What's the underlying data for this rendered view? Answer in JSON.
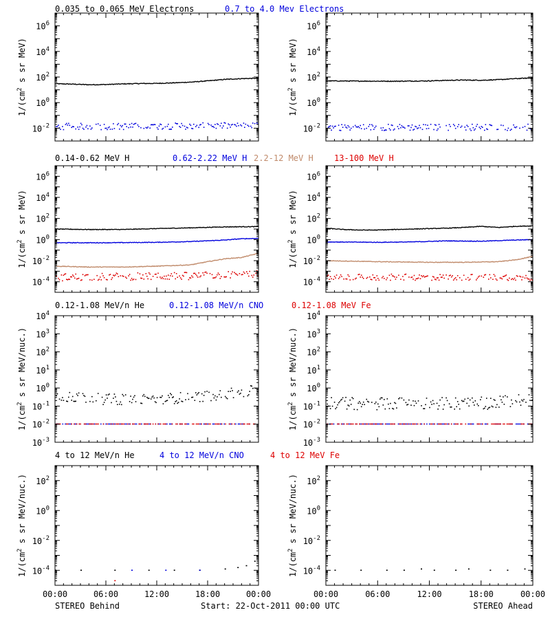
{
  "time_axis": {
    "ticks": [
      "00:00",
      "06:00",
      "12:00",
      "18:00",
      "00:00"
    ],
    "start": "Start: 22-Oct-2011 00:00 UTC",
    "left_label": "STEREO Behind",
    "right_label": "STEREO Ahead"
  },
  "chart_data": [
    {
      "type": "scatter",
      "row": 1,
      "legend": [
        {
          "text": "0.035 to 0.065 MeV Electrons",
          "color": "#000000"
        },
        {
          "text": "0.7 to 4.0 Mev Electrons",
          "color": "#0000dd"
        }
      ],
      "ylabel_pre": "1/(cm",
      "ylabel_sup": "2",
      "ylabel_post": " s sr MeV)",
      "yscale": "log",
      "ylim_exp": [
        -3,
        7
      ],
      "yticks": [
        {
          "b": "10",
          "e": "-2"
        },
        {
          "b": "10",
          "e": "0"
        },
        {
          "b": "10",
          "e": "2"
        },
        {
          "b": "10",
          "e": "4"
        },
        {
          "b": "10",
          "e": "6"
        }
      ],
      "xlim_hours": [
        0,
        24
      ],
      "panels": {
        "behind": [
          {
            "name": "0.035 to 0.065 MeV Electrons",
            "color": "#000000",
            "style": "line",
            "points": [
              [
                0,
                30
              ],
              [
                2,
                28
              ],
              [
                4,
                25
              ],
              [
                6,
                26
              ],
              [
                8,
                29
              ],
              [
                10,
                31
              ],
              [
                12,
                32
              ],
              [
                14,
                35
              ],
              [
                16,
                40
              ],
              [
                18,
                50
              ],
              [
                20,
                65
              ],
              [
                22,
                75
              ],
              [
                24,
                80
              ]
            ]
          },
          {
            "name": "0.7 to 4.0 Mev Electrons",
            "color": "#0000dd",
            "style": "dots",
            "points": [
              [
                0,
                0.015
              ],
              [
                4,
                0.015
              ],
              [
                8,
                0.015
              ],
              [
                12,
                0.016
              ],
              [
                16,
                0.016
              ],
              [
                20,
                0.017
              ],
              [
                24,
                0.017
              ]
            ],
            "scatter": 0.25
          }
        ],
        "ahead": [
          {
            "name": "0.035 to 0.065 MeV Electrons",
            "color": "#000000",
            "style": "line",
            "points": [
              [
                0,
                50
              ],
              [
                4,
                48
              ],
              [
                8,
                47
              ],
              [
                12,
                50
              ],
              [
                14,
                55
              ],
              [
                16,
                58
              ],
              [
                18,
                56
              ],
              [
                20,
                62
              ],
              [
                22,
                75
              ],
              [
                24,
                85
              ]
            ]
          },
          {
            "name": "0.7 to 4.0 Mev Electrons",
            "color": "#0000dd",
            "style": "dots",
            "points": [
              [
                0,
                0.013
              ],
              [
                6,
                0.013
              ],
              [
                12,
                0.013
              ],
              [
                18,
                0.013
              ],
              [
                24,
                0.013
              ]
            ],
            "scatter": 0.25
          }
        ]
      }
    },
    {
      "type": "scatter",
      "row": 2,
      "legend": [
        {
          "text": "0.14-0.62 MeV H",
          "color": "#000000"
        },
        {
          "text": "0.62-2.22 MeV H",
          "color": "#0000dd"
        },
        {
          "text": "2.2-12 MeV H",
          "color": "#c08a6a"
        },
        {
          "text": "13-100 MeV H",
          "color": "#dd0000"
        }
      ],
      "ylabel_pre": "1/(cm",
      "ylabel_sup": "2",
      "ylabel_post": " s sr MeV)",
      "yscale": "log",
      "ylim_exp": [
        -5,
        7
      ],
      "yticks": [
        {
          "b": "10",
          "e": "-4"
        },
        {
          "b": "10",
          "e": "-2"
        },
        {
          "b": "10",
          "e": "0"
        },
        {
          "b": "10",
          "e": "2"
        },
        {
          "b": "10",
          "e": "4"
        },
        {
          "b": "10",
          "e": "6"
        }
      ],
      "xlim_hours": [
        0,
        24
      ],
      "panels": {
        "behind": [
          {
            "name": "0.14-0.62 MeV H",
            "color": "#000000",
            "style": "line",
            "points": [
              [
                0,
                10
              ],
              [
                4,
                9
              ],
              [
                8,
                9
              ],
              [
                12,
                11
              ],
              [
                16,
                13
              ],
              [
                20,
                16
              ],
              [
                24,
                17
              ]
            ]
          },
          {
            "name": "0.62-2.22 MeV H",
            "color": "#0000dd",
            "style": "line",
            "points": [
              [
                0,
                0.5
              ],
              [
                6,
                0.5
              ],
              [
                12,
                0.55
              ],
              [
                16,
                0.65
              ],
              [
                20,
                0.9
              ],
              [
                22,
                1.2
              ],
              [
                24,
                1.3
              ]
            ]
          },
          {
            "name": "2.2-12 MeV H",
            "color": "#c08a6a",
            "style": "line",
            "points": [
              [
                0,
                0.003
              ],
              [
                4,
                0.0025
              ],
              [
                8,
                0.0025
              ],
              [
                12,
                0.003
              ],
              [
                16,
                0.004
              ],
              [
                18,
                0.008
              ],
              [
                20,
                0.015
              ],
              [
                22,
                0.02
              ],
              [
                24,
                0.05
              ]
            ]
          },
          {
            "name": "13-100 MeV H",
            "color": "#dd0000",
            "style": "dots",
            "points": [
              [
                0,
                0.0003
              ],
              [
                8,
                0.00035
              ],
              [
                16,
                0.0004
              ],
              [
                24,
                0.0006
              ]
            ],
            "scatter": 0.35
          }
        ],
        "ahead": [
          {
            "name": "0.14-0.62 MeV H",
            "color": "#000000",
            "style": "line",
            "points": [
              [
                0,
                12
              ],
              [
                2,
                9
              ],
              [
                4,
                8
              ],
              [
                6,
                8
              ],
              [
                8,
                9
              ],
              [
                10,
                10
              ],
              [
                14,
                12
              ],
              [
                16,
                14
              ],
              [
                18,
                18
              ],
              [
                20,
                14
              ],
              [
                22,
                18
              ],
              [
                24,
                20
              ]
            ]
          },
          {
            "name": "0.62-2.22 MeV H",
            "color": "#0000dd",
            "style": "line",
            "points": [
              [
                0,
                0.6
              ],
              [
                6,
                0.55
              ],
              [
                10,
                0.6
              ],
              [
                14,
                0.75
              ],
              [
                18,
                0.7
              ],
              [
                22,
                0.9
              ],
              [
                24,
                1.0
              ]
            ]
          },
          {
            "name": "2.2-12 MeV H",
            "color": "#c08a6a",
            "style": "line",
            "points": [
              [
                0,
                0.01
              ],
              [
                6,
                0.008
              ],
              [
                12,
                0.007
              ],
              [
                16,
                0.007
              ],
              [
                20,
                0.008
              ],
              [
                22,
                0.012
              ],
              [
                24,
                0.025
              ]
            ]
          },
          {
            "name": "13-100 MeV H",
            "color": "#dd0000",
            "style": "dots",
            "points": [
              [
                0,
                0.0003
              ],
              [
                8,
                0.0003
              ],
              [
                16,
                0.0003
              ],
              [
                24,
                0.0003
              ]
            ],
            "scatter": 0.3
          }
        ]
      }
    },
    {
      "type": "scatter",
      "row": 3,
      "legend": [
        {
          "text": "0.12-1.08 MeV/n He",
          "color": "#000000"
        },
        {
          "text": "0.12-1.08 MeV/n CNO",
          "color": "#0000dd"
        },
        {
          "text": "0.12-1.08 MeV Fe",
          "color": "#dd0000"
        }
      ],
      "ylabel_pre": "1/(cm",
      "ylabel_sup": "2",
      "ylabel_post": " s sr MeV/nuc.)",
      "yscale": "log",
      "ylim_exp": [
        -3,
        4
      ],
      "yticks": [
        {
          "b": "10",
          "e": "-3"
        },
        {
          "b": "10",
          "e": "-2"
        },
        {
          "b": "10",
          "e": "-1"
        },
        {
          "b": "10",
          "e": "0"
        },
        {
          "b": "10",
          "e": "1"
        },
        {
          "b": "10",
          "e": "2"
        },
        {
          "b": "10",
          "e": "3"
        },
        {
          "b": "10",
          "e": "4"
        }
      ],
      "xlim_hours": [
        0,
        24
      ],
      "panels": {
        "behind": [
          {
            "name": "0.12-1.08 MeV/n He",
            "color": "#000000",
            "style": "dots",
            "points": [
              [
                0,
                0.4
              ],
              [
                6,
                0.25
              ],
              [
                12,
                0.25
              ],
              [
                18,
                0.4
              ],
              [
                24,
                0.8
              ]
            ],
            "scatter": 0.3
          },
          {
            "name": "0.12-1.08 MeV/n CNO",
            "color": "#0000dd",
            "style": "floor",
            "level": 0.01,
            "points": [
              [
                0,
                0.01
              ],
              [
                24,
                0.01
              ]
            ]
          },
          {
            "name": "0.12-1.08 MeV Fe",
            "color": "#dd0000",
            "style": "floor",
            "level": 0.01,
            "points": [
              [
                0,
                0.01
              ],
              [
                24,
                0.01
              ]
            ]
          }
        ],
        "ahead": [
          {
            "name": "0.12-1.08 MeV/n He",
            "color": "#000000",
            "style": "dots",
            "points": [
              [
                0,
                0.15
              ],
              [
                6,
                0.15
              ],
              [
                12,
                0.15
              ],
              [
                18,
                0.15
              ],
              [
                24,
                0.25
              ]
            ],
            "scatter": 0.35
          },
          {
            "name": "0.12-1.08 MeV/n CNO",
            "color": "#0000dd",
            "style": "floor",
            "level": 0.01,
            "points": [
              [
                0,
                0.01
              ],
              [
                24,
                0.01
              ]
            ]
          },
          {
            "name": "0.12-1.08 MeV Fe",
            "color": "#dd0000",
            "style": "floor",
            "level": 0.01,
            "points": [
              [
                0,
                0.01
              ],
              [
                24,
                0.01
              ]
            ]
          }
        ]
      }
    },
    {
      "type": "scatter",
      "row": 4,
      "legend": [
        {
          "text": "4 to 12 MeV/n He",
          "color": "#000000"
        },
        {
          "text": "4 to 12 MeV/n CNO",
          "color": "#0000dd"
        },
        {
          "text": "4 to 12 MeV Fe",
          "color": "#dd0000"
        }
      ],
      "ylabel_pre": "1/(cm",
      "ylabel_sup": "2",
      "ylabel_post": " s sr MeV/nuc.)",
      "yscale": "log",
      "ylim_exp": [
        -5,
        3
      ],
      "yticks": [
        {
          "b": "10",
          "e": "-4"
        },
        {
          "b": "10",
          "e": "-2"
        },
        {
          "b": "10",
          "e": "0"
        },
        {
          "b": "10",
          "e": "2"
        }
      ],
      "xlim_hours": [
        0,
        24
      ],
      "panels": {
        "behind": [
          {
            "name": "4 to 12 MeV/n He",
            "color": "#000000",
            "style": "sparse",
            "points": [
              [
                0,
                0.0001
              ],
              [
                3,
                0.0001
              ],
              [
                7,
                0.0001
              ],
              [
                11,
                0.0001
              ],
              [
                14,
                0.0001
              ],
              [
                17,
                0.0001
              ],
              [
                20,
                0.00012
              ],
              [
                21.5,
                0.00015
              ],
              [
                22.5,
                0.0002
              ],
              [
                23.5,
                0.0004
              ]
            ]
          },
          {
            "name": "4 to 12 MeV/n CNO",
            "color": "#0000dd",
            "style": "sparse",
            "points": [
              [
                9,
                0.0001
              ],
              [
                13,
                0.0001
              ],
              [
                17,
                0.0001
              ]
            ]
          },
          {
            "name": "4 to 12 MeV Fe",
            "color": "#dd0000",
            "style": "sparse",
            "points": [
              [
                7,
                2e-05
              ]
            ]
          }
        ],
        "ahead": [
          {
            "name": "4 to 12 MeV/n He",
            "color": "#000000",
            "style": "sparse",
            "points": [
              [
                1,
                0.0001
              ],
              [
                4,
                0.0001
              ],
              [
                7,
                0.0001
              ],
              [
                9,
                0.0001
              ],
              [
                11,
                0.00012
              ],
              [
                12.5,
                0.0001
              ],
              [
                15,
                0.0001
              ],
              [
                16.5,
                0.00012
              ],
              [
                19,
                0.0001
              ],
              [
                21,
                0.0001
              ],
              [
                23,
                0.00012
              ]
            ]
          }
        ]
      }
    }
  ]
}
